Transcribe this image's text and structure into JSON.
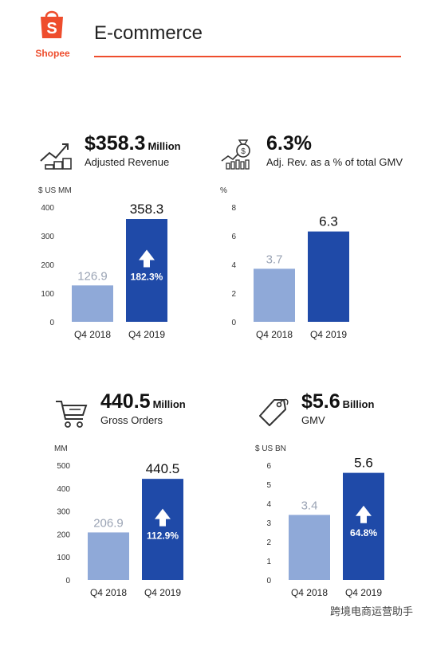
{
  "header": {
    "logo_text": "Shopee",
    "logo_icon": "shopping-bag-icon",
    "title": "E-commerce"
  },
  "colors": {
    "brand": "#ee4d2d",
    "bar_prev": "#8fa9d8",
    "bar_curr": "#1f4aa8"
  },
  "panels": [
    {
      "icon": "revenue-growth-icon",
      "value": "$358.3",
      "unit": "Million",
      "caption": "Adjusted Revenue",
      "axis_unit": "$ US MM",
      "growth": "182.3%"
    },
    {
      "icon": "money-bag-chart-icon",
      "value": "6.3%",
      "unit": "",
      "caption": "Adj. Rev. as a % of total GMV",
      "axis_unit": "%",
      "growth": ""
    },
    {
      "icon": "shopping-cart-icon",
      "value": "440.5",
      "unit": "Million",
      "caption": "Gross Orders",
      "axis_unit": "MM",
      "growth": "112.9%"
    },
    {
      "icon": "price-tag-icon",
      "value": "$5.6",
      "unit": "Billion",
      "caption": "GMV",
      "axis_unit": "$ US BN",
      "growth": "64.8%"
    }
  ],
  "chart_data": [
    {
      "type": "bar",
      "categories": [
        "Q4 2018",
        "Q4 2019"
      ],
      "values": [
        126.9,
        358.3
      ],
      "value_labels": [
        "126.9",
        "358.3"
      ],
      "ylabel": "$ US MM",
      "ylim": [
        0,
        400
      ],
      "yticks": [
        0,
        100,
        200,
        300,
        400
      ],
      "growth_label": "182.3%"
    },
    {
      "type": "bar",
      "categories": [
        "Q4 2018",
        "Q4 2019"
      ],
      "values": [
        3.7,
        6.3
      ],
      "value_labels": [
        "3.7",
        "6.3"
      ],
      "ylabel": "%",
      "ylim": [
        0,
        8
      ],
      "yticks": [
        0,
        2,
        4,
        6,
        8
      ],
      "growth_label": ""
    },
    {
      "type": "bar",
      "categories": [
        "Q4 2018",
        "Q4 2019"
      ],
      "values": [
        206.9,
        440.5
      ],
      "value_labels": [
        "206.9",
        "440.5"
      ],
      "ylabel": "MM",
      "ylim": [
        0,
        500
      ],
      "yticks": [
        0,
        100,
        200,
        300,
        400,
        500
      ],
      "growth_label": "112.9%"
    },
    {
      "type": "bar",
      "categories": [
        "Q4 2018",
        "Q4 2019"
      ],
      "values": [
        3.4,
        5.6
      ],
      "value_labels": [
        "3.4",
        "5.6"
      ],
      "ylabel": "$ US BN",
      "ylim": [
        0,
        6
      ],
      "yticks": [
        0,
        1,
        2,
        3,
        4,
        5,
        6
      ],
      "growth_label": "64.8%"
    }
  ],
  "watermark": "跨境电商运营助手"
}
